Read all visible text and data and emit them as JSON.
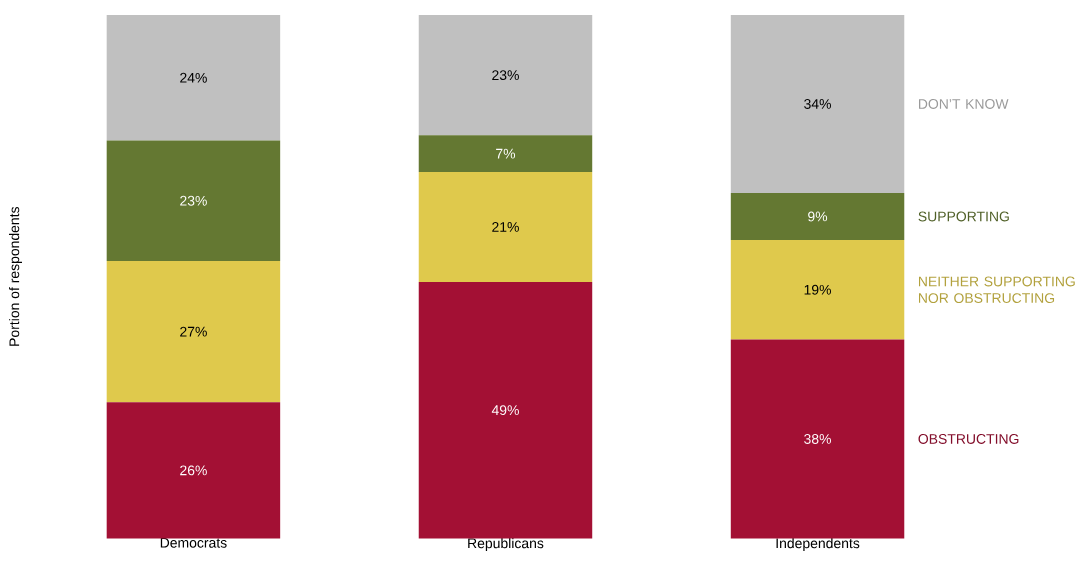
{
  "chart_data": {
    "type": "bar",
    "stacked": true,
    "ylabel": "Portion of respondents",
    "legend": "right",
    "categories": [
      "Democrats",
      "Republicans",
      "Independents"
    ],
    "series": [
      {
        "name": "OBSTRUCTING",
        "color": "#a31034",
        "values": [
          26,
          49,
          38
        ],
        "value_labels": [
          "26%",
          "49%",
          "38%"
        ]
      },
      {
        "name": "NEITHER SUPPORTING NOR OBSTRUCTING",
        "color": "#dfc94c",
        "values": [
          27,
          21,
          19
        ],
        "value_labels": [
          "27%",
          "21%",
          "19%"
        ]
      },
      {
        "name": "SUPPORTING",
        "color": "#647832",
        "values": [
          23,
          7,
          9
        ],
        "value_labels": [
          "23%",
          "7%",
          "9%"
        ]
      },
      {
        "name": "DON’T KNOW",
        "color": "#c0c0c0",
        "values": [
          24,
          23,
          34
        ],
        "value_labels": [
          "24%",
          "23%",
          "34%"
        ]
      }
    ]
  }
}
